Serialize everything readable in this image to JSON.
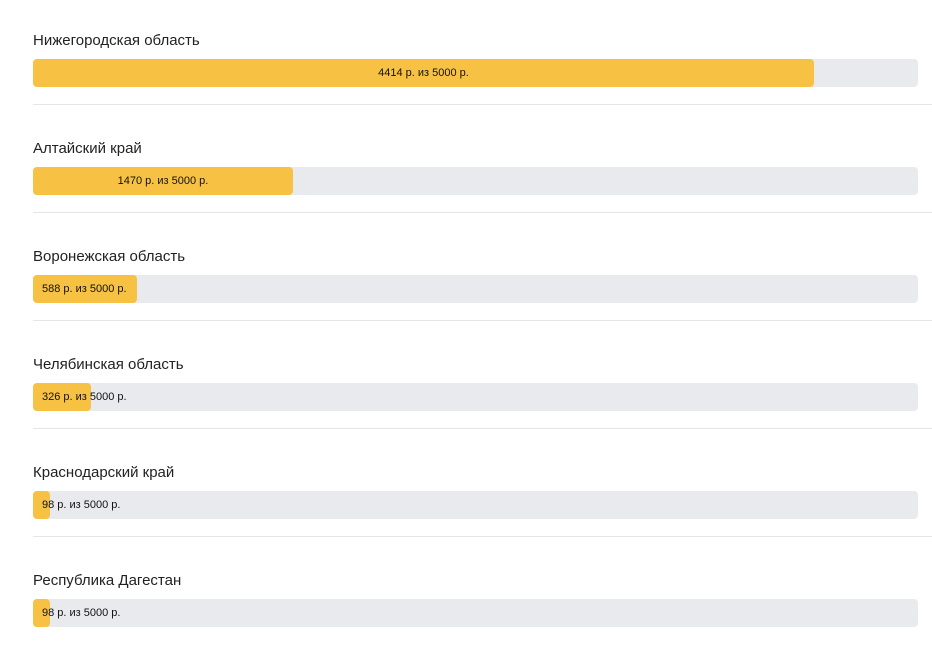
{
  "accent_color": "#f7c244",
  "track_color": "#e9eaee",
  "regions": [
    {
      "name": "Нижегородская область",
      "value": 4414,
      "total": 5000,
      "label": "4414 р. из 5000 р."
    },
    {
      "name": "Алтайский край",
      "value": 1470,
      "total": 5000,
      "label": "1470 р. из 5000 р."
    },
    {
      "name": "Воронежская область",
      "value": 588,
      "total": 5000,
      "label": "588 р. из 5000 р."
    },
    {
      "name": "Челябинская область",
      "value": 326,
      "total": 5000,
      "label": "326 р. из 5000 р."
    },
    {
      "name": "Краснодарский край",
      "value": 98,
      "total": 5000,
      "label": "98 р. из 5000 р."
    },
    {
      "name": "Республика Дагестан",
      "value": 98,
      "total": 5000,
      "label": "98 р. из 5000 р."
    }
  ]
}
